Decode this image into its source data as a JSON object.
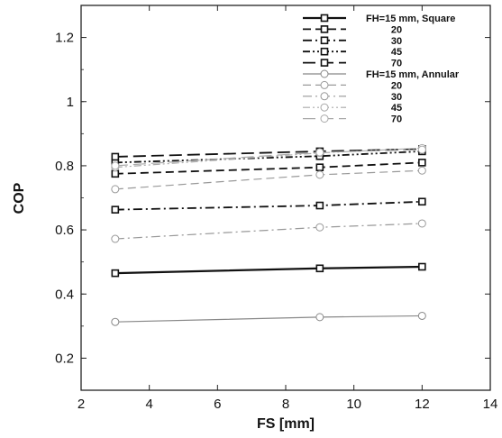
{
  "chart_data": {
    "type": "line",
    "xlabel": "FS [mm]",
    "ylabel": "COP",
    "xlim": [
      2,
      14
    ],
    "ylim": [
      0.1,
      1.3
    ],
    "xticks": [
      2,
      4,
      6,
      8,
      10,
      12,
      14
    ],
    "yticks": [
      0.2,
      0.4,
      0.6,
      0.8,
      1,
      1.2
    ],
    "x": [
      3,
      9,
      12
    ],
    "grid": false,
    "legend_position": "top-right",
    "series": [
      {
        "name": "FH=15 mm, Square",
        "values": [
          0.465,
          0.48,
          0.485
        ],
        "color": "#111111",
        "dash": "solid",
        "marker": "square",
        "width": 2.2
      },
      {
        "name": "20",
        "values": [
          0.775,
          0.795,
          0.81
        ],
        "color": "#111111",
        "dash": "dash",
        "marker": "square",
        "width": 1.8
      },
      {
        "name": "30",
        "values": [
          0.663,
          0.676,
          0.688
        ],
        "color": "#111111",
        "dash": "dashdot",
        "marker": "square",
        "width": 1.8
      },
      {
        "name": "45",
        "values": [
          0.81,
          0.83,
          0.845
        ],
        "color": "#111111",
        "dash": "dashdotdot",
        "marker": "square",
        "width": 1.8
      },
      {
        "name": "70",
        "values": [
          0.828,
          0.845,
          0.852
        ],
        "color": "#111111",
        "dash": "longdash",
        "marker": "square",
        "width": 1.8
      },
      {
        "name": "FH=15 mm, Annular",
        "values": [
          0.313,
          0.328,
          0.332
        ],
        "color": "#888888",
        "dash": "solid",
        "marker": "circle",
        "width": 1.2
      },
      {
        "name": "20",
        "values": [
          0.727,
          0.772,
          0.785
        ],
        "color": "#999999",
        "dash": "dash",
        "marker": "circle",
        "width": 1.2
      },
      {
        "name": "30",
        "values": [
          0.572,
          0.608,
          0.62
        ],
        "color": "#999999",
        "dash": "dashdot",
        "marker": "circle",
        "width": 1.2
      },
      {
        "name": "45",
        "values": [
          0.795,
          0.84,
          0.855
        ],
        "color": "#aaaaaa",
        "dash": "dashdotdot",
        "marker": "circle",
        "width": 1.2
      },
      {
        "name": "70",
        "values": [
          0.8,
          0.842,
          0.85
        ],
        "color": "#aaaaaa",
        "dash": "longdash",
        "marker": "circle",
        "width": 1.2
      }
    ]
  }
}
